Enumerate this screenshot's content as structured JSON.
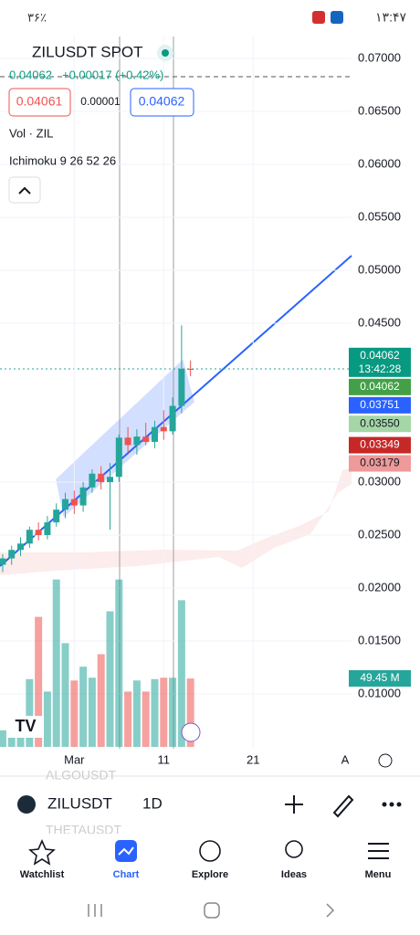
{
  "status_bar": {
    "time": "۱۳:۴۷",
    "battery": "۳۶٪"
  },
  "header": {
    "symbol": "ZILUSDT SPOT",
    "price": "0.04062",
    "change": "+0.00017 (+0.42%)",
    "bid": "0.04061",
    "spread": "0.00001",
    "ask": "0.04062",
    "volume_indicator": "Vol · ZIL",
    "ichimoku": "Ichimoku 9 26 52 26"
  },
  "chart_data": {
    "type": "candlestick",
    "open": [
      0.0222,
      0.0228,
      0.0236,
      0.0242,
      0.0255,
      0.025,
      0.0262,
      0.0274,
      0.0284,
      0.0278,
      0.0295,
      0.0308,
      0.03,
      0.0305,
      0.0342,
      0.0335,
      0.0343,
      0.0338,
      0.0352,
      0.0348,
      0.0372,
      0.0407
    ],
    "high": [
      0.0232,
      0.024,
      0.0248,
      0.0258,
      0.0262,
      0.0268,
      0.028,
      0.029,
      0.0292,
      0.03,
      0.0312,
      0.0315,
      0.0318,
      0.0345,
      0.0352,
      0.035,
      0.0356,
      0.0358,
      0.0368,
      0.038,
      0.0448,
      0.0415
    ],
    "low": [
      0.0215,
      0.0222,
      0.023,
      0.0238,
      0.0245,
      0.0246,
      0.0258,
      0.0266,
      0.027,
      0.0272,
      0.029,
      0.0293,
      0.0255,
      0.03,
      0.0328,
      0.0326,
      0.0335,
      0.0332,
      0.034,
      0.0345,
      0.0365,
      0.04
    ],
    "close": [
      0.0228,
      0.0236,
      0.0242,
      0.0255,
      0.025,
      0.0262,
      0.0274,
      0.0284,
      0.0278,
      0.0295,
      0.0308,
      0.03,
      0.0305,
      0.0342,
      0.0335,
      0.0343,
      0.0338,
      0.0352,
      0.0348,
      0.0372,
      0.0407,
      0.0406
    ],
    "volume": [
      12,
      20,
      22,
      49,
      94,
      40,
      121,
      75,
      48,
      58,
      50,
      67,
      98,
      121,
      40,
      48,
      40,
      49,
      50,
      50,
      106,
      49.45
    ],
    "last_volume_label": "49.45 M",
    "up_color": "#26a69a",
    "down_color": "#ef5350",
    "xlim": [
      -0.3,
      39
    ],
    "ylim": [
      0.00483,
      0.07207
    ],
    "vlim": [
      0,
      130
    ],
    "xticks": [
      {
        "value": 8,
        "label": "Mar"
      },
      {
        "value": 18,
        "label": "11"
      },
      {
        "value": 28,
        "label": "21"
      }
    ],
    "yticks": [
      {
        "value": 0.07,
        "label": "0.07000"
      },
      {
        "value": 0.065,
        "label": "0.06500"
      },
      {
        "value": 0.06,
        "label": "0.06000"
      },
      {
        "value": 0.055,
        "label": "0.05500"
      },
      {
        "value": 0.05,
        "label": "0.05000"
      },
      {
        "value": 0.045,
        "label": "0.04500"
      },
      {
        "value": 0.03,
        "label": "0.03000"
      },
      {
        "value": 0.025,
        "label": "0.02500"
      },
      {
        "value": 0.02,
        "label": "0.02000"
      },
      {
        "value": 0.015,
        "label": "0.01500"
      },
      {
        "value": 0.01,
        "label": "0.01000"
      }
    ],
    "price_labels": [
      {
        "value": 0.04062,
        "label": "0.04062",
        "countdown": "13:42:28",
        "color": "#089981"
      },
      {
        "value": 0.04062,
        "label": "0.04062",
        "color": "#43a047"
      },
      {
        "value": 0.03751,
        "label": "0.03751",
        "color": "#2962ff"
      },
      {
        "value": 0.0355,
        "label": "0.03550",
        "color": "#a5d6a7"
      },
      {
        "value": 0.03349,
        "label": "0.03349",
        "color": "#c62828"
      },
      {
        "value": 0.03179,
        "label": "0.03179",
        "color": "#ef9a9a"
      }
    ]
  },
  "toolbar": {
    "auto": "A"
  },
  "symbol_bar": {
    "prev": "ALGOUSDT",
    "symbol": "ZILUSDT",
    "interval": "1D",
    "next": "THETAUSDT"
  },
  "nav": [
    "Watchlist",
    "Chart",
    "Explore",
    "Ideas",
    "Menu"
  ]
}
